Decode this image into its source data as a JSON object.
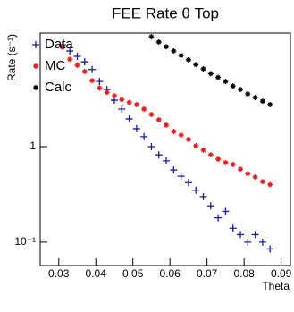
{
  "chart_data": {
    "type": "scatter",
    "title": "FEE Rate θ Top",
    "x_label": "Theta",
    "y_label": "Rate (s⁻¹)",
    "x": [
      0.031,
      0.033,
      0.035,
      0.037,
      0.039,
      0.041,
      0.043,
      0.045,
      0.047,
      0.049,
      0.051,
      0.053,
      0.055,
      0.057,
      0.059,
      0.061,
      0.063,
      0.065,
      0.067,
      0.069,
      0.071,
      0.073,
      0.075,
      0.077,
      0.079,
      0.081,
      0.083,
      0.085,
      0.087
    ],
    "series": [
      {
        "name": "Data",
        "color": "#1a1aa6",
        "marker": "plus",
        "values": [
          11.6,
          10.0,
          8.8,
          7.7,
          6.4,
          4.8,
          3.96,
          3.06,
          2.47,
          1.95,
          1.54,
          1.27,
          1.0,
          0.82,
          0.71,
          0.57,
          0.49,
          0.42,
          0.35,
          0.3,
          0.24,
          0.18,
          0.21,
          0.14,
          0.12,
          0.1,
          0.12,
          0.1,
          0.085
        ]
      },
      {
        "name": "MC",
        "color": "#e8191a",
        "marker": "star",
        "values": [
          11.0,
          8.2,
          7.1,
          6.1,
          4.9,
          4.1,
          3.7,
          3.4,
          3.1,
          2.9,
          2.75,
          2.47,
          2.17,
          1.91,
          1.68,
          1.44,
          1.32,
          1.19,
          1.02,
          0.92,
          0.82,
          0.74,
          0.68,
          0.65,
          0.58,
          0.52,
          0.48,
          0.43,
          0.4
        ]
      },
      {
        "name": "Calc",
        "color": "#000000",
        "marker": "star",
        "values": [
          null,
          null,
          null,
          null,
          null,
          null,
          null,
          null,
          null,
          null,
          null,
          null,
          14.1,
          12.4,
          11.1,
          10.0,
          9.0,
          8.1,
          7.2,
          6.5,
          5.8,
          5.3,
          4.8,
          4.3,
          3.96,
          3.56,
          3.26,
          2.99,
          2.75
        ]
      }
    ],
    "xlim": [
      0.025,
      0.0925
    ],
    "xticks": [
      0.03,
      0.04,
      0.05,
      0.06,
      0.07,
      0.08,
      0.09
    ],
    "ylim": [
      0.057,
      15.4
    ],
    "yticks": [
      {
        "value": 0.1,
        "label": "10⁻¹"
      },
      1
    ],
    "log_y": true,
    "legend": "upper left"
  }
}
